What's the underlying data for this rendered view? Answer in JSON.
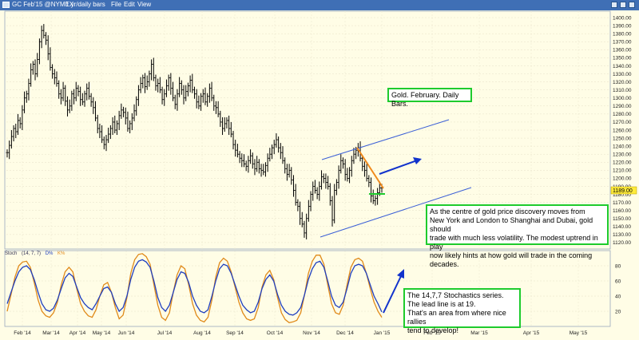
{
  "window": {
    "title": "GC Feb'15 @NYMEX",
    "interval": "1 yr/daily bars",
    "menu": [
      "File",
      "Edit",
      "View"
    ]
  },
  "colors": {
    "background": "#fffde6",
    "titlebar": "#3f6fb5",
    "bars": "#000000",
    "channel": "#3b5fd6",
    "downtrend": "#f08a1c",
    "arrow": "#1233cc",
    "stoch_d": "#1f3fbf",
    "stoch_k": "#e08a1a",
    "annotation_border": "#1ecb2d",
    "price_badge": "#ffeb3b"
  },
  "annotations": {
    "title_box": "Gold. February. Daily Bars.",
    "main_note": [
      "As the centre of gold price discovery moves from",
      "New York and London to Shanghai and Dubai, gold should",
      "trade with much less volatility.  The modest uptrend in play",
      "now likely hints at how gold will trade in the coming decades."
    ],
    "stoch_note": [
      "The 14,7,7 Stochastics series.",
      "The lead line is at 19.",
      "That's an area from where nice rallies",
      "tend to develop!"
    ]
  },
  "legend": {
    "name": "Stoch",
    "params": "(14, 7, 7)",
    "d": "D%",
    "k": "K%"
  },
  "chart_data": [
    {
      "type": "ohlc",
      "title": "GC Feb'15 daily",
      "y_ticks": [
        1120,
        1130,
        1140,
        1150,
        1160,
        1170,
        1180,
        1190,
        1200,
        1210,
        1220,
        1230,
        1240,
        1250,
        1260,
        1270,
        1280,
        1290,
        1300,
        1310,
        1320,
        1330,
        1340,
        1350,
        1360,
        1370,
        1380,
        1390,
        1400
      ],
      "ylim": [
        1112,
        1408
      ],
      "last_price": "1189.00",
      "x_labels": [
        "Feb '14",
        "Mar '14",
        "Apr '14",
        "May '14",
        "Jun '14",
        "Jul '14",
        "Aug '14",
        "Sep '14",
        "Oct '14",
        "Nov '14",
        "Dec '14",
        "Jan '15",
        "Feb '15",
        "Mar '15",
        "Apr '15",
        "May '15"
      ],
      "closes": [
        1232,
        1241,
        1252,
        1262,
        1258,
        1272,
        1268,
        1285,
        1300,
        1305,
        1318,
        1335,
        1342,
        1330,
        1348,
        1370,
        1384,
        1378,
        1372,
        1355,
        1338,
        1330,
        1325,
        1318,
        1305,
        1300,
        1312,
        1296,
        1285,
        1290,
        1305,
        1300,
        1312,
        1308,
        1298,
        1295,
        1305,
        1312,
        1302,
        1295,
        1288,
        1275,
        1262,
        1258,
        1248,
        1242,
        1248,
        1255,
        1262,
        1270,
        1260,
        1268,
        1278,
        1285,
        1282,
        1275,
        1262,
        1268,
        1275,
        1284,
        1298,
        1310,
        1318,
        1325,
        1314,
        1320,
        1330,
        1342,
        1325,
        1315,
        1318,
        1310,
        1298,
        1305,
        1315,
        1325,
        1312,
        1300,
        1292,
        1305,
        1318,
        1310,
        1300,
        1308,
        1315,
        1322,
        1310,
        1305,
        1295,
        1290,
        1302,
        1305,
        1295,
        1302,
        1312,
        1300,
        1290,
        1288,
        1280,
        1270,
        1262,
        1268,
        1272,
        1262,
        1255,
        1242,
        1235,
        1230,
        1225,
        1222,
        1218,
        1215,
        1222,
        1228,
        1218,
        1212,
        1220,
        1212,
        1210,
        1208,
        1216,
        1225,
        1230,
        1238,
        1242,
        1248,
        1238,
        1232,
        1222,
        1212,
        1205,
        1210,
        1198,
        1185,
        1170,
        1165,
        1150,
        1143,
        1132,
        1150,
        1165,
        1180,
        1190,
        1185,
        1180,
        1190,
        1202,
        1200,
        1195,
        1190,
        1172,
        1148,
        1185,
        1195,
        1210,
        1222,
        1218,
        1205,
        1200,
        1210,
        1222,
        1230,
        1235,
        1238,
        1225,
        1215,
        1210,
        1200,
        1195,
        1178,
        1172,
        1175,
        1182,
        1188,
        1189
      ]
    },
    {
      "type": "line",
      "title": "Stoch (14, 7, 7)",
      "y_ticks": [
        20,
        40,
        60,
        80
      ],
      "ylim": [
        0,
        100
      ],
      "series": [
        {
          "name": "D%",
          "values": [
            30,
            45,
            60,
            72,
            78,
            80,
            75,
            62,
            45,
            30,
            22,
            20,
            24,
            35,
            50,
            64,
            70,
            66,
            52,
            38,
            30,
            25,
            22,
            30,
            40,
            50,
            52,
            45,
            30,
            20,
            25,
            40,
            62,
            78,
            86,
            88,
            85,
            78,
            60,
            38,
            25,
            20,
            28,
            45,
            62,
            72,
            70,
            58,
            40,
            28,
            20,
            18,
            22,
            40,
            60,
            76,
            82,
            80,
            70,
            55,
            40,
            28,
            22,
            18,
            20,
            32,
            50,
            62,
            68,
            60,
            42,
            28,
            20,
            16,
            15,
            18,
            25,
            42,
            62,
            76,
            84,
            86,
            78,
            60,
            40,
            28,
            25,
            32,
            50,
            70,
            80,
            82,
            80,
            70,
            55,
            40,
            30,
            19
          ]
        },
        {
          "name": "K%",
          "values": [
            20,
            42,
            65,
            80,
            85,
            86,
            78,
            58,
            35,
            20,
            14,
            12,
            18,
            32,
            55,
            72,
            78,
            72,
            50,
            30,
            20,
            14,
            12,
            22,
            40,
            55,
            58,
            45,
            25,
            10,
            15,
            38,
            70,
            88,
            95,
            96,
            92,
            82,
            55,
            28,
            12,
            8,
            18,
            45,
            68,
            80,
            76,
            55,
            30,
            15,
            8,
            6,
            12,
            35,
            65,
            84,
            90,
            86,
            72,
            52,
            32,
            18,
            10,
            8,
            10,
            25,
            52,
            68,
            74,
            62,
            38,
            18,
            9,
            5,
            6,
            8,
            18,
            42,
            70,
            86,
            94,
            94,
            82,
            55,
            30,
            18,
            16,
            28,
            55,
            78,
            88,
            90,
            86,
            70,
            50,
            32,
            20,
            12
          ]
        }
      ]
    }
  ]
}
